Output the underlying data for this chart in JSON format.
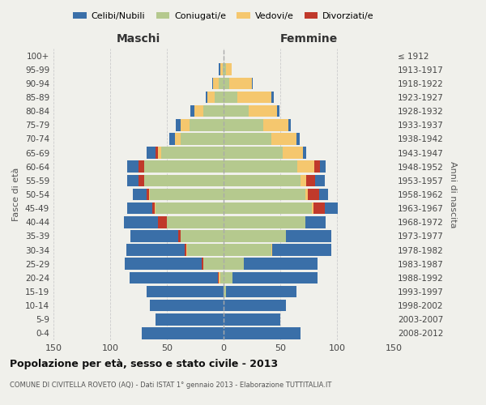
{
  "age_groups": [
    "0-4",
    "5-9",
    "10-14",
    "15-19",
    "20-24",
    "25-29",
    "30-34",
    "35-39",
    "40-44",
    "45-49",
    "50-54",
    "55-59",
    "60-64",
    "65-69",
    "70-74",
    "75-79",
    "80-84",
    "85-89",
    "90-94",
    "95-99",
    "100+"
  ],
  "birth_years": [
    "2008-2012",
    "2003-2007",
    "1998-2002",
    "1993-1997",
    "1988-1992",
    "1983-1987",
    "1978-1982",
    "1973-1977",
    "1968-1972",
    "1963-1967",
    "1958-1962",
    "1953-1957",
    "1948-1952",
    "1943-1947",
    "1938-1942",
    "1933-1937",
    "1928-1932",
    "1923-1927",
    "1918-1922",
    "1913-1917",
    "≤ 1912"
  ],
  "maschi": {
    "coniugati": [
      0,
      0,
      0,
      0,
      3,
      18,
      32,
      38,
      50,
      60,
      65,
      70,
      70,
      55,
      38,
      30,
      18,
      8,
      4,
      1,
      0
    ],
    "vedovi": [
      0,
      0,
      0,
      0,
      1,
      0,
      1,
      0,
      0,
      1,
      1,
      0,
      0,
      3,
      5,
      8,
      8,
      6,
      5,
      2,
      0
    ],
    "divorziati": [
      0,
      0,
      0,
      0,
      1,
      1,
      1,
      2,
      8,
      2,
      2,
      5,
      5,
      2,
      0,
      0,
      0,
      0,
      0,
      0,
      0
    ],
    "celibi": [
      72,
      60,
      65,
      68,
      78,
      68,
      52,
      42,
      30,
      22,
      12,
      10,
      10,
      8,
      5,
      4,
      3,
      2,
      1,
      1,
      0
    ]
  },
  "femmine": {
    "coniugate": [
      0,
      0,
      0,
      2,
      8,
      18,
      42,
      55,
      72,
      78,
      72,
      68,
      65,
      52,
      42,
      35,
      22,
      12,
      5,
      2,
      0
    ],
    "vedove": [
      0,
      0,
      0,
      0,
      0,
      0,
      1,
      0,
      0,
      1,
      2,
      5,
      15,
      18,
      22,
      22,
      25,
      30,
      20,
      5,
      0
    ],
    "divorziate": [
      0,
      0,
      0,
      0,
      0,
      0,
      0,
      0,
      0,
      10,
      10,
      8,
      5,
      0,
      0,
      0,
      0,
      0,
      0,
      0,
      0
    ],
    "nubili": [
      68,
      50,
      55,
      62,
      75,
      65,
      52,
      40,
      18,
      12,
      8,
      8,
      5,
      3,
      3,
      2,
      2,
      2,
      1,
      0,
      0
    ]
  },
  "colors": {
    "celibi": "#3a6fa8",
    "coniugati": "#b5c98e",
    "vedovi": "#f5c76e",
    "divorziati": "#c0392b"
  },
  "xlim": 150,
  "title": "Popolazione per età, sesso e stato civile - 2013",
  "subtitle": "COMUNE DI CIVITELLA ROVETO (AQ) - Dati ISTAT 1° gennaio 2013 - Elaborazione TUTTITALIA.IT",
  "xlabel_left": "Maschi",
  "xlabel_right": "Femmine",
  "ylabel": "Fasce di età",
  "ylabel_right": "Anni di nascita",
  "bg_color": "#f0f0eb",
  "grid_color": "#cccccc"
}
